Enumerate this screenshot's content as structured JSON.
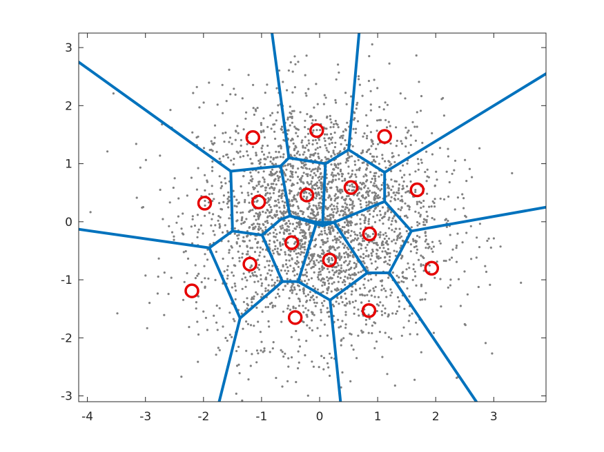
{
  "chart_data": {
    "type": "scatter",
    "title": "",
    "xlabel": "",
    "ylabel": "",
    "xlim": [
      -4.15,
      3.9
    ],
    "ylim": [
      -3.1,
      3.25
    ],
    "grid": false,
    "x_ticks": [
      -4,
      -3,
      -2,
      -1,
      0,
      1,
      2,
      3
    ],
    "x_tick_labels": [
      "-4",
      "-3",
      "-2",
      "-1",
      "0",
      "1",
      "2",
      "3"
    ],
    "y_ticks": [
      -3,
      -2,
      -1,
      0,
      1,
      2,
      3
    ],
    "y_tick_labels": [
      "-3",
      "-2",
      "-1",
      "0",
      "1",
      "2",
      "3"
    ],
    "colors": {
      "points": "#808080",
      "centroids": "#e60000",
      "edges": "#0072bd",
      "axes": "#262626"
    },
    "centroids": [
      [
        -1.15,
        1.45
      ],
      [
        -0.05,
        1.57
      ],
      [
        1.12,
        1.47
      ],
      [
        -1.98,
        0.32
      ],
      [
        -1.05,
        0.34
      ],
      [
        -0.22,
        0.46
      ],
      [
        0.54,
        0.59
      ],
      [
        1.68,
        0.55
      ],
      [
        -0.48,
        -0.36
      ],
      [
        0.86,
        -0.21
      ],
      [
        -1.2,
        -0.73
      ],
      [
        0.17,
        -0.66
      ],
      [
        1.93,
        -0.8
      ],
      [
        -2.2,
        -1.19
      ],
      [
        -0.42,
        -1.65
      ],
      [
        0.85,
        -1.53
      ]
    ],
    "voronoi_edges": [
      [
        [
          -4.15,
          2.75
        ],
        [
          -1.53,
          0.87
        ]
      ],
      [
        [
          -1.53,
          0.87
        ],
        [
          -1.5,
          -0.16
        ]
      ],
      [
        [
          -1.5,
          -0.16
        ],
        [
          -1.9,
          -0.45
        ]
      ],
      [
        [
          -1.9,
          -0.45
        ],
        [
          -4.15,
          -0.13
        ]
      ],
      [
        [
          -1.9,
          -0.45
        ],
        [
          -1.37,
          -1.66
        ]
      ],
      [
        [
          -1.37,
          -1.66
        ],
        [
          -1.73,
          -3.1
        ]
      ],
      [
        [
          -1.37,
          -1.66
        ],
        [
          -0.64,
          -1.03
        ]
      ],
      [
        [
          -0.64,
          -1.03
        ],
        [
          -0.99,
          -0.23
        ]
      ],
      [
        [
          -0.99,
          -0.23
        ],
        [
          -1.5,
          -0.16
        ]
      ],
      [
        [
          -0.99,
          -0.23
        ],
        [
          -0.67,
          0.04
        ]
      ],
      [
        [
          -0.67,
          0.04
        ],
        [
          -0.51,
          0.1
        ]
      ],
      [
        [
          -0.51,
          0.1
        ],
        [
          0.05,
          -0.07
        ]
      ],
      [
        [
          -0.51,
          0.1
        ],
        [
          -0.67,
          0.96
        ]
      ],
      [
        [
          -0.67,
          0.96
        ],
        [
          -1.53,
          0.87
        ]
      ],
      [
        [
          -0.67,
          0.96
        ],
        [
          -0.53,
          1.1
        ]
      ],
      [
        [
          -0.53,
          1.1
        ],
        [
          -0.82,
          3.25
        ]
      ],
      [
        [
          -0.53,
          1.1
        ],
        [
          0.1,
          1
        ]
      ],
      [
        [
          0.1,
          1
        ],
        [
          0.05,
          -0.07
        ]
      ],
      [
        [
          0.1,
          1
        ],
        [
          0.5,
          1.24
        ]
      ],
      [
        [
          0.5,
          1.24
        ],
        [
          0.68,
          3.25
        ]
      ],
      [
        [
          0.5,
          1.24
        ],
        [
          1.12,
          0.85
        ]
      ],
      [
        [
          1.12,
          0.85
        ],
        [
          3.9,
          2.55
        ]
      ],
      [
        [
          1.12,
          0.85
        ],
        [
          1.12,
          0.35
        ]
      ],
      [
        [
          1.12,
          0.35
        ],
        [
          0.25,
          -0.01
        ]
      ],
      [
        [
          0.25,
          -0.01
        ],
        [
          0.05,
          -0.07
        ]
      ],
      [
        [
          0.25,
          -0.01
        ],
        [
          -0.05,
          -0.01
        ]
      ],
      [
        [
          1.12,
          0.35
        ],
        [
          1.58,
          -0.16
        ]
      ],
      [
        [
          1.58,
          -0.16
        ],
        [
          3.9,
          0.25
        ]
      ],
      [
        [
          1.58,
          -0.16
        ],
        [
          1.2,
          -0.88
        ]
      ],
      [
        [
          1.2,
          -0.88
        ],
        [
          2.7,
          -3.1
        ]
      ],
      [
        [
          1.2,
          -0.88
        ],
        [
          0.82,
          -0.88
        ]
      ],
      [
        [
          0.82,
          -0.88
        ],
        [
          0.25,
          -0.01
        ]
      ],
      [
        [
          0.82,
          -0.88
        ],
        [
          0.18,
          -1.35
        ]
      ],
      [
        [
          0.18,
          -1.35
        ],
        [
          0.36,
          -3.1
        ]
      ],
      [
        [
          0.18,
          -1.35
        ],
        [
          -0.37,
          -1.03
        ]
      ],
      [
        [
          -0.37,
          -1.03
        ],
        [
          -0.64,
          -1.03
        ]
      ],
      [
        [
          -0.37,
          -1.03
        ],
        [
          -0.05,
          -0.01
        ]
      ],
      [
        [
          -0.05,
          -0.01
        ],
        [
          -0.51,
          0.1
        ]
      ]
    ]
  }
}
